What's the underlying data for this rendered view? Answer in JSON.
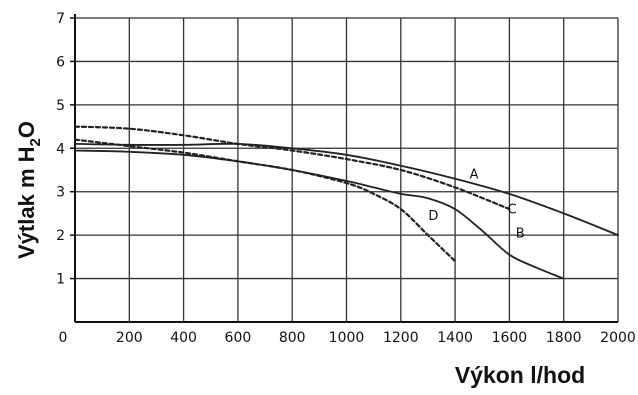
{
  "chart_data": {
    "type": "line",
    "title": "",
    "xlabel": "Výkon l/hod",
    "ylabel_main": "Výtlak m H",
    "ylabel_sub": "2",
    "ylabel_end": "O",
    "xlim": [
      0,
      2000
    ],
    "ylim": [
      0,
      7
    ],
    "x_ticks": [
      "0",
      "200",
      "400",
      "600",
      "800",
      "1000",
      "1200",
      "1400",
      "1600",
      "1800",
      "2000"
    ],
    "y_ticks": [
      "1",
      "2",
      "3",
      "4",
      "5",
      "6",
      "7"
    ],
    "grid": true,
    "series": [
      {
        "name": "A",
        "style": "solid",
        "x": [
          0,
          200,
          400,
          600,
          800,
          1000,
          1200,
          1400,
          1600,
          1800,
          2000
        ],
        "y": [
          4.1,
          4.08,
          4.08,
          4.1,
          4.0,
          3.85,
          3.6,
          3.3,
          2.95,
          2.5,
          2.0
        ]
      },
      {
        "name": "B",
        "style": "solid",
        "x": [
          0,
          200,
          400,
          600,
          800,
          1000,
          1100,
          1200,
          1300,
          1400,
          1500,
          1600,
          1700,
          1800
        ],
        "y": [
          3.95,
          3.92,
          3.85,
          3.7,
          3.5,
          3.25,
          3.1,
          2.95,
          2.85,
          2.6,
          2.1,
          1.55,
          1.25,
          1.0
        ]
      },
      {
        "name": "C",
        "style": "dashed",
        "x": [
          0,
          200,
          400,
          600,
          800,
          1000,
          1200,
          1400,
          1600
        ],
        "y": [
          4.5,
          4.45,
          4.3,
          4.1,
          3.95,
          3.75,
          3.5,
          3.1,
          2.6
        ]
      },
      {
        "name": "D",
        "style": "dashed",
        "x": [
          0,
          200,
          400,
          600,
          800,
          1000,
          1100,
          1200,
          1300,
          1400
        ],
        "y": [
          4.2,
          4.05,
          3.9,
          3.7,
          3.5,
          3.2,
          2.95,
          2.6,
          2.0,
          1.4
        ]
      }
    ],
    "annotations": [
      {
        "text": "A",
        "x": 1470,
        "y": 3.3
      },
      {
        "text": "B",
        "x": 1640,
        "y": 1.95
      },
      {
        "text": "C",
        "x": 1610,
        "y": 2.5
      },
      {
        "text": "D",
        "x": 1320,
        "y": 2.35
      }
    ],
    "colors": {
      "line": "#222222",
      "grid": "#333333",
      "background": "#ffffff"
    }
  }
}
